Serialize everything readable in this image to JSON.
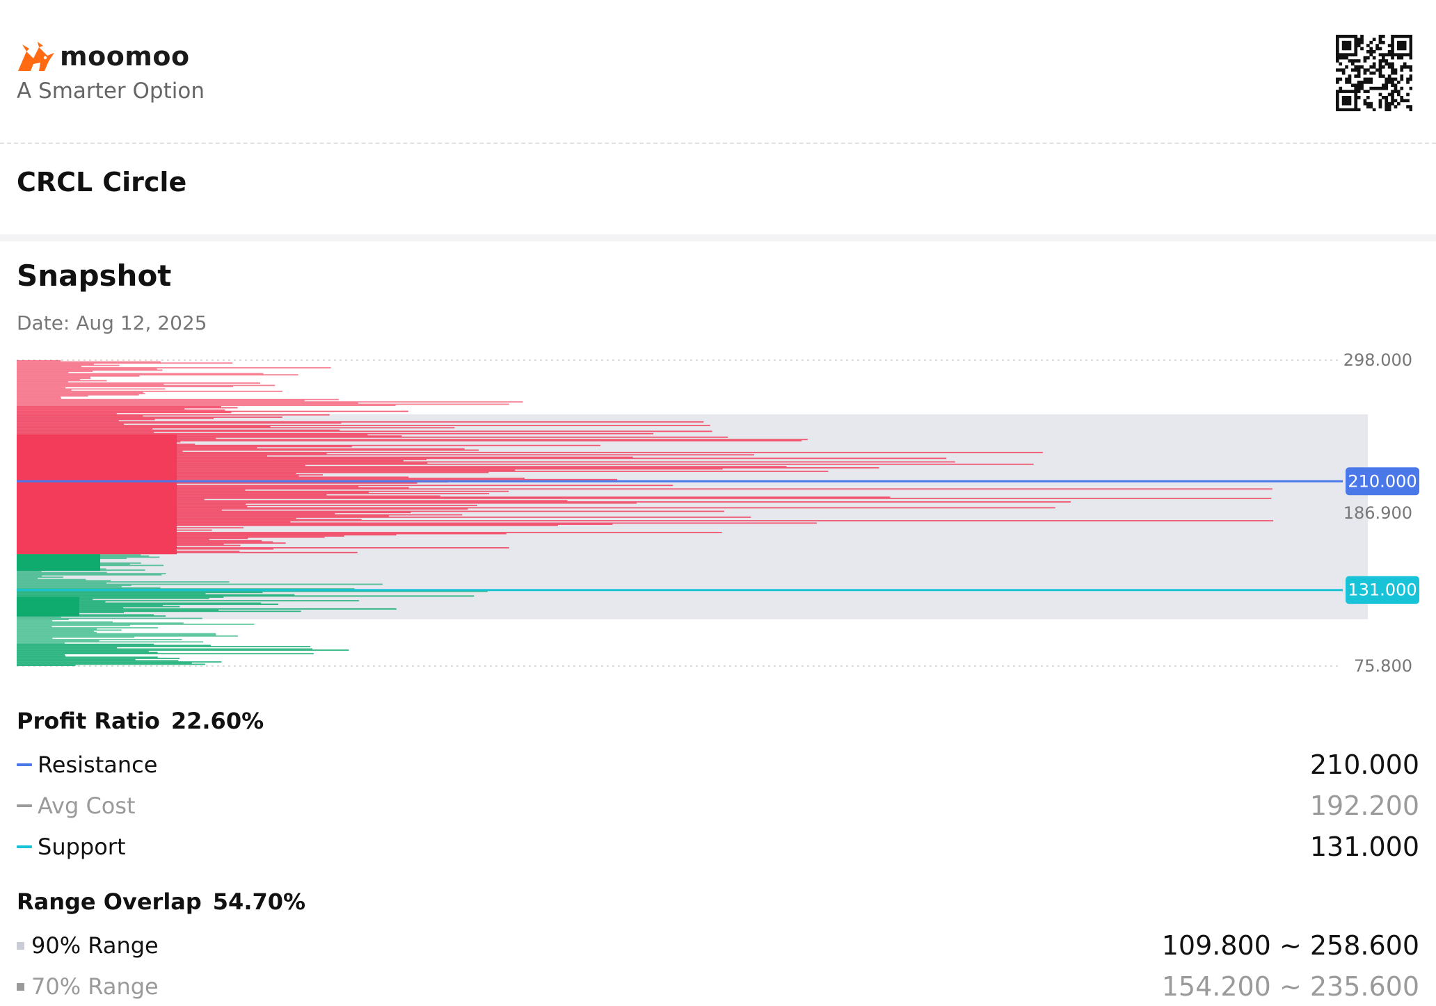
{
  "brand": {
    "name": "moomoo",
    "tagline": "A Smarter Option",
    "color": "#FF6A13"
  },
  "stock": {
    "ticker": "CRCL",
    "name": "Circle"
  },
  "snapshot": {
    "title": "Snapshot",
    "date": "Date: Aug 12, 2025"
  },
  "chart_data": {
    "type": "horizontal-histogram",
    "description": "Chip distribution by price level",
    "y_range": [
      75.8,
      298.0
    ],
    "y_labels": [
      "298.000",
      "186.900",
      "75.800"
    ],
    "markers": [
      {
        "name": "Resistance",
        "value": 210.0,
        "label": "210.000",
        "color": "#4A78E8"
      },
      {
        "name": "Support",
        "value": 131.0,
        "label": "131.000",
        "color": "#18C3D7"
      }
    ],
    "current_price": 186.9,
    "highlight_range": [
      109.8,
      258.6
    ],
    "colors": {
      "profit": "#F23C5A",
      "loss": "#0EAA6E",
      "range": "#E6E8EE"
    }
  },
  "stats": {
    "profit_ratio_label": "Profit Ratio",
    "profit_ratio_value": "22.60%",
    "resistance_label": "Resistance",
    "resistance_value": "210.000",
    "avg_cost_label": "Avg Cost",
    "avg_cost_value": "192.200",
    "support_label": "Support",
    "support_value": "131.000",
    "range_overlap_label": "Range Overlap",
    "range_overlap_value": "54.70%",
    "range90_label": "90% Range",
    "range90_value": "109.800 ~ 258.600",
    "range70_label": "70% Range",
    "range70_value": "154.200 ~ 235.600"
  },
  "icons": {
    "logo": "bull-logo-icon",
    "qr": "qr-code-icon"
  }
}
